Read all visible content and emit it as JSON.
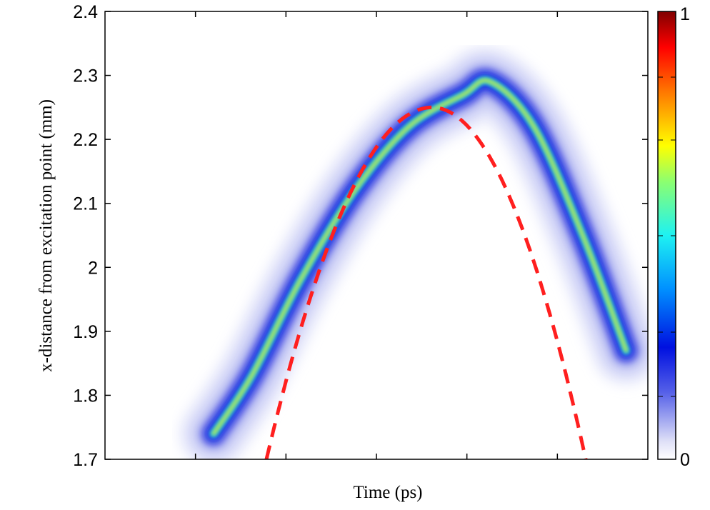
{
  "chart_data": {
    "type": "heatmap",
    "title": "",
    "xlabel": "Time (ps)",
    "ylabel": "x-distance from excitation point (mm)",
    "ylim": [
      1.7,
      2.4
    ],
    "yticks": [
      "1.7",
      "1.8",
      "1.9",
      "2",
      "2.1",
      "2.2",
      "2.3",
      "2.4"
    ],
    "x_tick_count": 5,
    "grid": false,
    "colorbar": {
      "range": [
        0,
        1
      ],
      "tick_labels": [
        "0",
        "1"
      ],
      "colormap": "jet"
    },
    "density_ridge": {
      "description_points": [
        {
          "t": 0.2,
          "x": 1.74
        },
        {
          "t": 0.27,
          "x": 1.83
        },
        {
          "t": 0.36,
          "x": 1.98
        },
        {
          "t": 0.46,
          "x": 2.12
        },
        {
          "t": 0.56,
          "x": 2.22
        },
        {
          "t": 0.66,
          "x": 2.27
        },
        {
          "t": 0.71,
          "x": 2.29
        },
        {
          "t": 0.79,
          "x": 2.22
        },
        {
          "t": 0.88,
          "x": 2.05
        },
        {
          "t": 0.96,
          "x": 1.87
        }
      ]
    },
    "fit_curve": {
      "style": "dashed",
      "color": "#ff1f1f",
      "shape": "parabola",
      "peak_x": 2.25,
      "endpoint_x": 1.7
    }
  },
  "colors": {
    "fit": "#ff1f1f",
    "background": "#ffffff"
  }
}
